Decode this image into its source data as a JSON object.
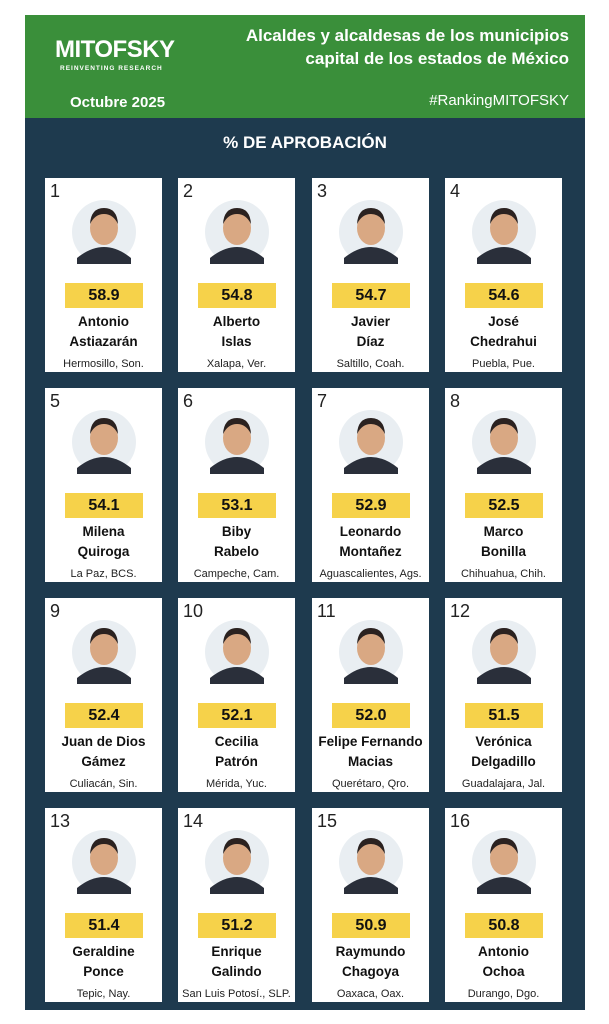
{
  "header": {
    "logo": "MITOFSKY",
    "logo_tagline": "REINVENTING RESEARCH",
    "title_lines": [
      "Alcaldes y alcaldesas de los municipios",
      "capital de los estados de México"
    ],
    "date": "Octubre 2025",
    "hashtag": "#RankingMITOFSKY"
  },
  "heading": "% DE APROBACIÓN",
  "cards": [
    {
      "rank": "1",
      "score": "58.9",
      "name": [
        "Antonio",
        "Astiazarán"
      ],
      "city": "Hermosillo, Son."
    },
    {
      "rank": "2",
      "score": "54.8",
      "name": [
        "Alberto",
        "Islas"
      ],
      "city": "Xalapa, Ver."
    },
    {
      "rank": "3",
      "score": "54.7",
      "name": [
        "Javier",
        "Díaz"
      ],
      "city": "Saltillo, Coah."
    },
    {
      "rank": "4",
      "score": "54.6",
      "name": [
        "José",
        "Chedrahui"
      ],
      "city": "Puebla, Pue."
    },
    {
      "rank": "5",
      "score": "54.1",
      "name": [
        "Milena",
        "Quiroga"
      ],
      "city": "La Paz, BCS."
    },
    {
      "rank": "6",
      "score": "53.1",
      "name": [
        "Biby",
        "Rabelo"
      ],
      "city": "Campeche, Cam."
    },
    {
      "rank": "7",
      "score": "52.9",
      "name": [
        "Leonardo",
        "Montañez"
      ],
      "city": "Aguascalientes, Ags."
    },
    {
      "rank": "8",
      "score": "52.5",
      "name": [
        "Marco",
        "Bonilla"
      ],
      "city": "Chihuahua, Chih."
    },
    {
      "rank": "9",
      "score": "52.4",
      "name": [
        "Juan de Dios",
        "Gámez"
      ],
      "city": "Culiacán, Sin."
    },
    {
      "rank": "10",
      "score": "52.1",
      "name": [
        "Cecilia",
        "Patrón"
      ],
      "city": "Mérida, Yuc."
    },
    {
      "rank": "11",
      "score": "52.0",
      "name": [
        "Felipe Fernando",
        "Macias"
      ],
      "city": "Querétaro, Qro."
    },
    {
      "rank": "12",
      "score": "51.5",
      "name": [
        "Verónica",
        "Delgadillo"
      ],
      "city": "Guadalajara, Jal."
    },
    {
      "rank": "13",
      "score": "51.4",
      "name": [
        "Geraldine",
        "Ponce"
      ],
      "city": "Tepic, Nay."
    },
    {
      "rank": "14",
      "score": "51.2",
      "name": [
        "Enrique",
        "Galindo"
      ],
      "city": "San Luis Potosí., SLP."
    },
    {
      "rank": "15",
      "score": "50.9",
      "name": [
        "Raymundo",
        "Chagoya"
      ],
      "city": "Oaxaca, Oax."
    },
    {
      "rank": "16",
      "score": "50.8",
      "name": [
        "Antonio",
        "Ochoa"
      ],
      "city": "Durango, Dgo."
    }
  ]
}
